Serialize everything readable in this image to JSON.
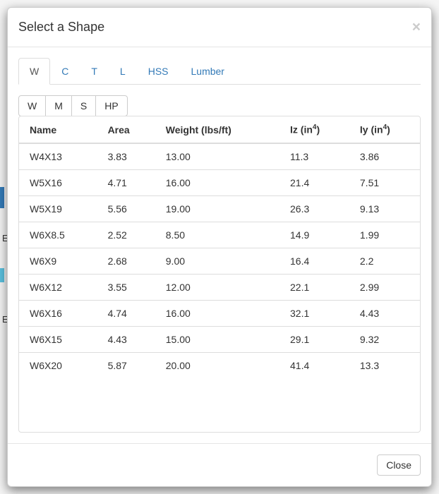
{
  "modal": {
    "title": "Select a Shape",
    "close_label": "Close"
  },
  "tabs": [
    {
      "label": "W",
      "active": true
    },
    {
      "label": "C",
      "active": false
    },
    {
      "label": "T",
      "active": false
    },
    {
      "label": "L",
      "active": false
    },
    {
      "label": "HSS",
      "active": false
    },
    {
      "label": "Lumber",
      "active": false
    }
  ],
  "subtabs": [
    {
      "label": "W",
      "active": true
    },
    {
      "label": "M",
      "active": false
    },
    {
      "label": "S",
      "active": false
    },
    {
      "label": "HP",
      "active": false
    }
  ],
  "table": {
    "columns": {
      "name": "Name",
      "area": "Area",
      "weight": "Weight (lbs/ft)",
      "iz_prefix": "Iz (in",
      "iy_prefix": "Iy (in",
      "sup": "4",
      "suffix": ")"
    },
    "rows": [
      {
        "name": "W4X13",
        "area": "3.83",
        "weight": "13.00",
        "iz": "11.3",
        "iy": "3.86"
      },
      {
        "name": "W5X16",
        "area": "4.71",
        "weight": "16.00",
        "iz": "21.4",
        "iy": "7.51"
      },
      {
        "name": "W5X19",
        "area": "5.56",
        "weight": "19.00",
        "iz": "26.3",
        "iy": "9.13"
      },
      {
        "name": "W6X8.5",
        "area": "2.52",
        "weight": "8.50",
        "iz": "14.9",
        "iy": "1.99"
      },
      {
        "name": "W6X9",
        "area": "2.68",
        "weight": "9.00",
        "iz": "16.4",
        "iy": "2.2"
      },
      {
        "name": "W6X12",
        "area": "3.55",
        "weight": "12.00",
        "iz": "22.1",
        "iy": "2.99"
      },
      {
        "name": "W6X16",
        "area": "4.74",
        "weight": "16.00",
        "iz": "32.1",
        "iy": "4.43"
      },
      {
        "name": "W6X15",
        "area": "4.43",
        "weight": "15.00",
        "iz": "29.1",
        "iy": "9.32"
      },
      {
        "name": "W6X20",
        "area": "5.87",
        "weight": "20.00",
        "iz": "41.4",
        "iy": "13.3"
      }
    ]
  }
}
